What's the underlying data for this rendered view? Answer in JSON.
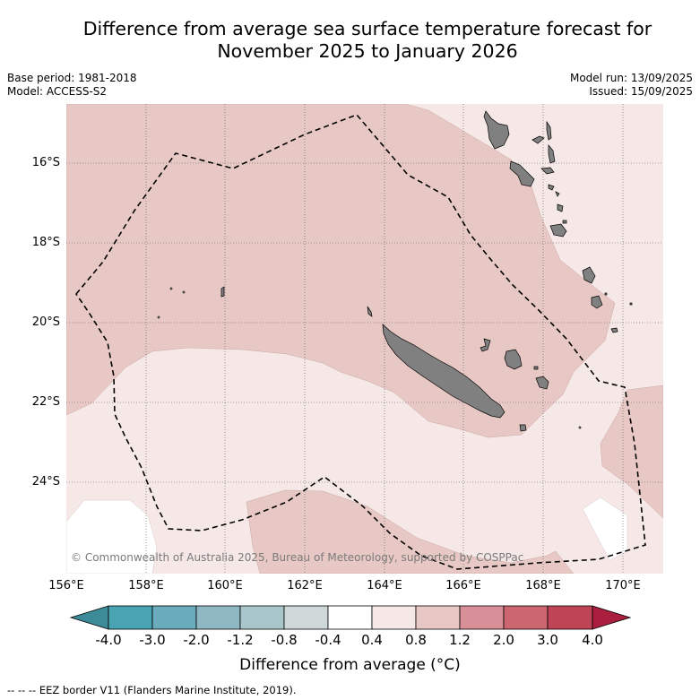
{
  "title_line1": "Difference from average sea surface temperature forecast for",
  "title_line2": "November 2025 to January 2026",
  "base_period": "Base period: 1981-2018",
  "model": "Model: ACCESS-S2",
  "model_run": "Model run: 13/09/2025",
  "issued": "Issued: 15/09/2025",
  "copyright": "© Commonwealth of Australia 2025, Bureau of Meteorology, supported by COSPPac",
  "lat_labels": [
    "16°S",
    "18°S",
    "20°S",
    "22°S",
    "24°S"
  ],
  "lon_labels": [
    "156°E",
    "158°E",
    "160°E",
    "162°E",
    "164°E",
    "166°E",
    "168°E",
    "170°E"
  ],
  "colorbar": {
    "ticks": [
      "-4.0",
      "-3.0",
      "-2.0",
      "-1.2",
      "-0.8",
      "-0.4",
      "0.4",
      "0.8",
      "1.2",
      "2.0",
      "3.0",
      "4.0"
    ],
    "colors": [
      "#3d8a98",
      "#48a3b2",
      "#6aacbb",
      "#8fb8c3",
      "#a9c7cb",
      "#cfd8d9",
      "#ffffff",
      "#f5e8e7",
      "#e8c8c4",
      "#d98f97",
      "#cc6670",
      "#bf4455",
      "#aa1e3e"
    ],
    "title": "Difference from average (°C)"
  },
  "legend_note": "-- -- -- EEZ border V11 (Flanders Marine Institute, 2019).",
  "colors": {
    "anomaly_0_4_to_0_8": "#f5e8e7",
    "anomaly_0_8_to_1_2": "#e8c8c4",
    "land": "#808080",
    "no_anomaly": "#ffffff"
  }
}
